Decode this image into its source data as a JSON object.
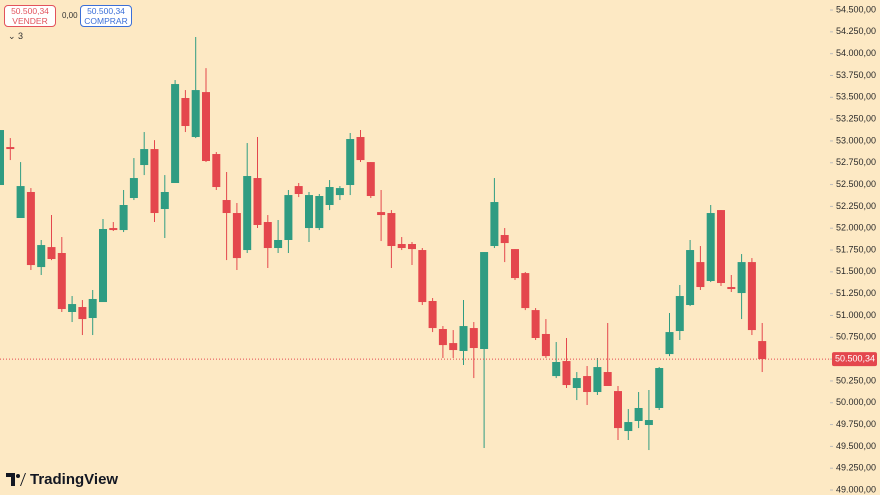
{
  "toolbar": {
    "sell_price": "50.500,34",
    "sell_label": "VENDER",
    "spread": "0,00",
    "buy_price": "50.500,34",
    "buy_label": "COMPRAR",
    "indicator_count": "3",
    "brand": "TradingView"
  },
  "chart_data": {
    "type": "candlestick",
    "up_color": "#2f9c82",
    "down_color": "#e4474d",
    "ylim": [
      48943,
      54615
    ],
    "yticks": [
      {
        "value": 49000,
        "label": "49.000,00"
      },
      {
        "value": 49250,
        "label": "49.250,00"
      },
      {
        "value": 49500,
        "label": "49.500,00"
      },
      {
        "value": 49750,
        "label": "49.750,00"
      },
      {
        "value": 50000,
        "label": "50.000,00"
      },
      {
        "value": 50250,
        "label": "50.250,00"
      },
      {
        "value": 50500,
        "label": "50.500,00"
      },
      {
        "value": 50750,
        "label": "50.750,00"
      },
      {
        "value": 51000,
        "label": "51.000,00"
      },
      {
        "value": 51250,
        "label": "51.250,00"
      },
      {
        "value": 51500,
        "label": "51.500,00"
      },
      {
        "value": 51750,
        "label": "51.750,00"
      },
      {
        "value": 52000,
        "label": "52.000,00"
      },
      {
        "value": 52250,
        "label": "52.250,00"
      },
      {
        "value": 52500,
        "label": "52.500,00"
      },
      {
        "value": 52750,
        "label": "52.750,00"
      },
      {
        "value": 53000,
        "label": "53.000,00"
      },
      {
        "value": 53250,
        "label": "53.250,00"
      },
      {
        "value": 53500,
        "label": "53.500,00"
      },
      {
        "value": 53750,
        "label": "53.750,00"
      },
      {
        "value": 54000,
        "label": "54.000,00"
      },
      {
        "value": 54250,
        "label": "54.250,00"
      },
      {
        "value": 54500,
        "label": "54.500,00"
      }
    ],
    "price_line": {
      "value": 50500.34,
      "label": "50.500,34"
    },
    "series": [
      {
        "open": [
          52495,
          52930,
          52117,
          52415,
          51555,
          51784,
          51716,
          51040,
          51097,
          50971,
          51154,
          52002,
          51979,
          52346,
          52724,
          52907,
          52220,
          52518,
          53492,
          53045,
          53560,
          52850,
          52323,
          52174,
          51750,
          52575,
          52071,
          51773,
          51865,
          52483,
          52002,
          52002,
          52266,
          52380,
          52495,
          53045,
          52758,
          52185,
          52174,
          51819,
          51819,
          51750,
          51166,
          50845,
          50684,
          50593,
          50856,
          50616,
          51796,
          51922,
          51761,
          51486,
          51062,
          50788,
          50306,
          50478,
          50169,
          50306,
          50123,
          50352,
          50134,
          49676,
          49791,
          49745,
          49940,
          50558,
          50822,
          51120,
          51612,
          51395,
          52208,
          51326,
          51257,
          51612,
          50707
        ],
        "high": [
          53125,
          53033,
          52758,
          52460,
          51865,
          52151,
          51899,
          51223,
          51177,
          51292,
          52105,
          52071,
          52438,
          52804,
          53102,
          53010,
          52609,
          53698,
          53583,
          54191,
          53835,
          52873,
          52644,
          52289,
          52976,
          53045,
          52151,
          52094,
          52438,
          52518,
          52415,
          52392,
          52552,
          52483,
          53091,
          53125,
          52758,
          52438,
          52208,
          51899,
          51842,
          51773,
          51200,
          50879,
          50833,
          51177,
          50925,
          51727,
          52575,
          52002,
          51761,
          51498,
          51085,
          50959,
          50696,
          50742,
          50352,
          50421,
          50513,
          50914,
          50192,
          49928,
          50123,
          50146,
          50409,
          51028,
          51349,
          51865,
          51796,
          52266,
          52208,
          51464,
          51704,
          51658,
          50914
        ],
        "low": [
          52495,
          52781,
          52117,
          51521,
          51464,
          51635,
          51040,
          50925,
          50776,
          50776,
          51154,
          51968,
          51956,
          52323,
          52609,
          52071,
          51888,
          52518,
          53102,
          53033,
          52758,
          52438,
          51635,
          51521,
          51716,
          52002,
          51544,
          51716,
          51716,
          52357,
          51842,
          51979,
          52208,
          52323,
          52380,
          52758,
          52346,
          51853,
          51544,
          51750,
          51578,
          51120,
          50810,
          50513,
          50513,
          50432,
          50283,
          49481,
          51773,
          51612,
          51406,
          51062,
          50719,
          50513,
          50283,
          50169,
          50031,
          49974,
          50089,
          50192,
          49573,
          49573,
          49710,
          49458,
          49917,
          50535,
          50719,
          51108,
          51292,
          51383,
          51338,
          51269,
          50959,
          50776,
          50352
        ],
        "close": [
          53125,
          52907,
          52483,
          51578,
          51807,
          51647,
          51074,
          51131,
          50959,
          51189,
          51991,
          51979,
          52266,
          52575,
          52907,
          52174,
          52415,
          53652,
          53171,
          53583,
          52770,
          52472,
          52174,
          51658,
          52598,
          52037,
          51773,
          51865,
          52380,
          52392,
          52380,
          52369,
          52472,
          52460,
          53022,
          52781,
          52369,
          52151,
          51796,
          51773,
          51761,
          51154,
          50856,
          50661,
          50604,
          50879,
          50627,
          51727,
          52300,
          51830,
          51429,
          51085,
          50742,
          50535,
          50467,
          50203,
          50283,
          50123,
          50409,
          50192,
          49710,
          49779,
          49940,
          49802,
          50398,
          50810,
          51223,
          51750,
          51326,
          52174,
          51372,
          51303,
          51612,
          50833,
          50500.34
        ]
      }
    ]
  }
}
